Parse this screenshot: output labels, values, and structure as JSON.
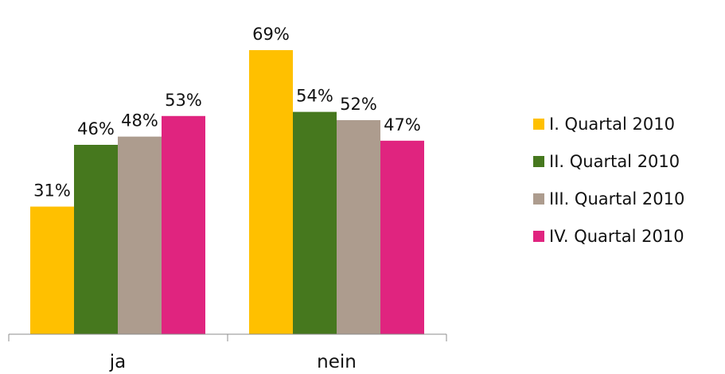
{
  "chart_data": {
    "type": "bar",
    "categories": [
      "ja",
      "nein"
    ],
    "series": [
      {
        "name": "I. Quartal 2010",
        "values": [
          31,
          69
        ],
        "labels": [
          "31%",
          "69%"
        ],
        "color": "#FFC000"
      },
      {
        "name": "II. Quartal 2010",
        "values": [
          46,
          54
        ],
        "labels": [
          "46%",
          "54%"
        ],
        "color": "#46781E"
      },
      {
        "name": "III. Quartal 2010",
        "values": [
          48,
          52
        ],
        "labels": [
          "48%",
          "52%"
        ],
        "color": "#AD9C8E"
      },
      {
        "name": "IV. Quartal 2010",
        "values": [
          53,
          47
        ],
        "labels": [
          "53%",
          "47%"
        ],
        "color": "#E0247F"
      }
    ],
    "ylim": [
      0,
      80
    ],
    "grid": false,
    "legend": "right",
    "data_labels": true,
    "title": "",
    "xlabel": "",
    "ylabel": ""
  }
}
